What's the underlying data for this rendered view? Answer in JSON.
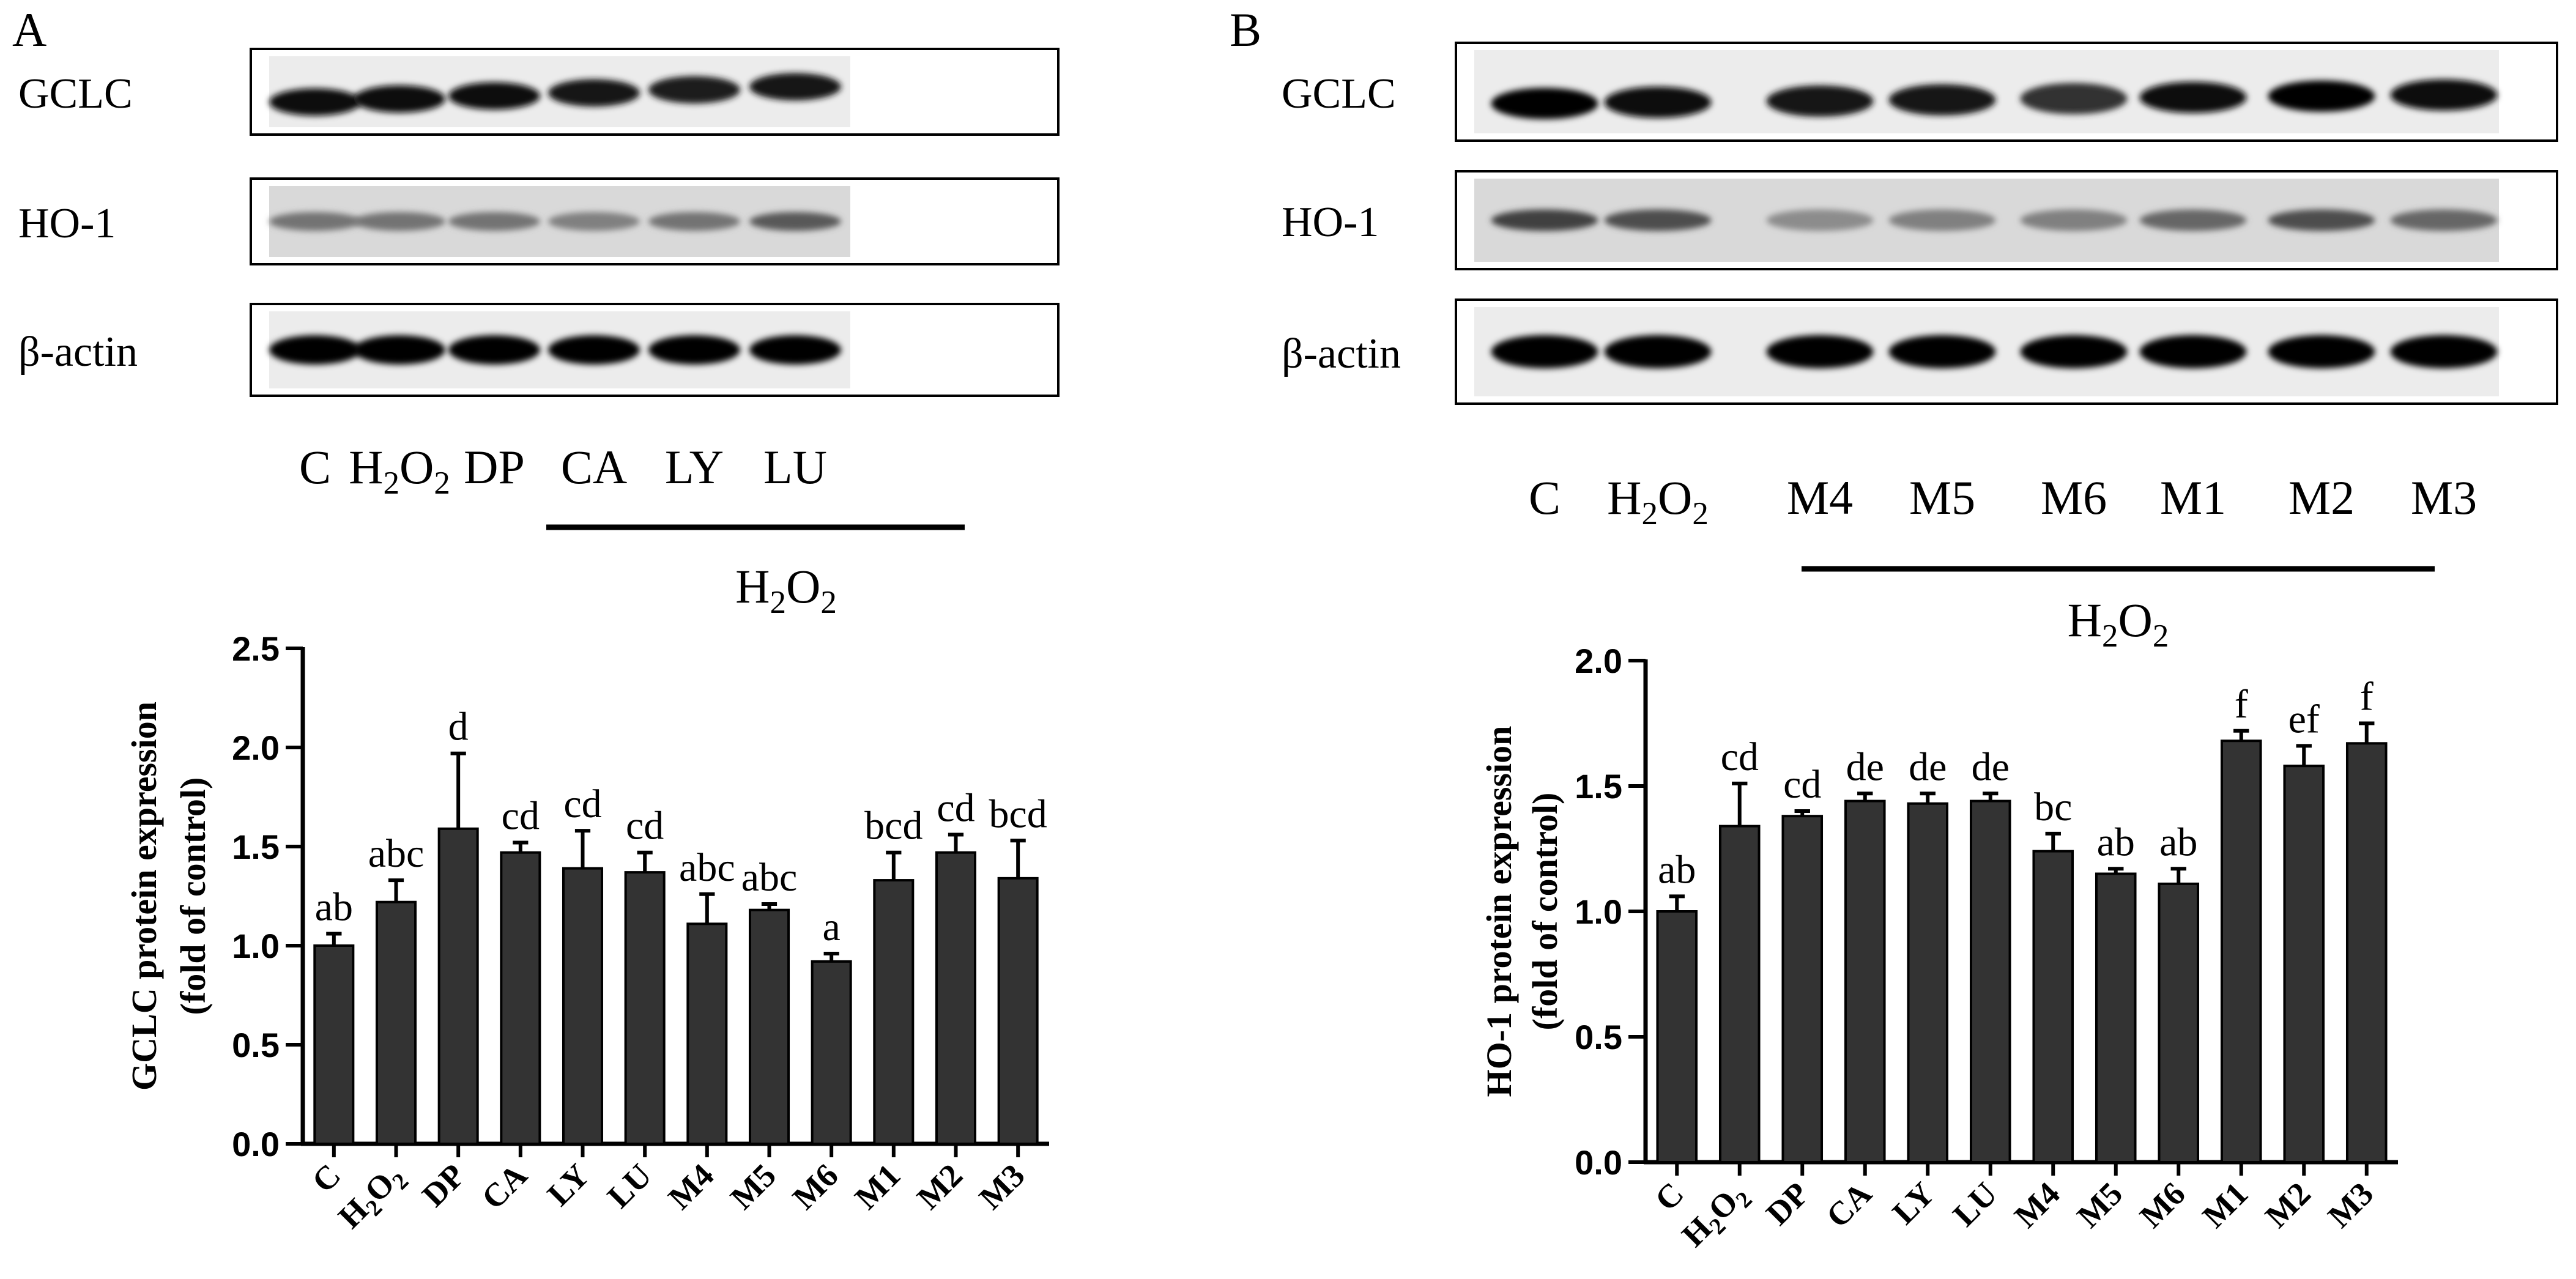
{
  "panels": [
    {
      "panel_label": "A",
      "blots": {
        "rows": [
          {
            "label": "GCLC",
            "bands": [
              0.95,
              0.95,
              0.95,
              0.92,
              0.88,
              0.92
            ],
            "mode": "tilt"
          },
          {
            "label": "HO-1",
            "bands": [
              0.55,
              0.55,
              0.55,
              0.5,
              0.55,
              0.65
            ],
            "mode": "faint"
          },
          {
            "label": "β-actin",
            "bands": [
              1.0,
              1.0,
              1.0,
              1.0,
              1.0,
              1.0
            ],
            "mode": "solid"
          }
        ],
        "lanes": [
          {
            "main": "C"
          },
          {
            "main": "H",
            "sub1": "2",
            "mid": "O",
            "sub2": "2"
          },
          {
            "main": "DP"
          },
          {
            "main": "CA"
          },
          {
            "main": "LY"
          },
          {
            "main": "LU"
          }
        ],
        "treatment": {
          "main": "H",
          "sub1": "2",
          "mid": "O",
          "sub2": "2"
        }
      }
    },
    {
      "panel_label": "B",
      "blots": {
        "rows": [
          {
            "label": "GCLC",
            "bands": [
              1.0,
              0.95,
              0.9,
              0.9,
              0.8,
              0.95,
              1.0,
              0.95
            ],
            "mode": "tilt"
          },
          {
            "label": "HO-1",
            "bands": [
              0.75,
              0.7,
              0.45,
              0.5,
              0.5,
              0.6,
              0.7,
              0.6
            ],
            "mode": "faint"
          },
          {
            "label": "β-actin",
            "bands": [
              1.0,
              1.0,
              1.0,
              1.0,
              1.0,
              1.0,
              1.0,
              1.0
            ],
            "mode": "solid"
          }
        ],
        "lanes": [
          {
            "main": "C"
          },
          {
            "main": "H",
            "sub1": "2",
            "mid": "O",
            "sub2": "2"
          },
          {
            "main": "M4"
          },
          {
            "main": "M5"
          },
          {
            "main": "M6"
          },
          {
            "main": "M1"
          },
          {
            "main": "M2"
          },
          {
            "main": "M3"
          }
        ],
        "treatment": {
          "main": "H",
          "sub1": "2",
          "mid": "O",
          "sub2": "2"
        }
      }
    }
  ],
  "chart_data": [
    {
      "type": "bar",
      "panel": "A",
      "categories": [
        "C",
        "H2O2",
        "DP",
        "CA",
        "LY",
        "LU",
        "M4",
        "M5",
        "M6",
        "M1",
        "M2",
        "M3"
      ],
      "values": [
        1.0,
        1.22,
        1.59,
        1.47,
        1.39,
        1.37,
        1.11,
        1.18,
        0.92,
        1.33,
        1.47,
        1.34
      ],
      "errors": [
        0.06,
        0.11,
        0.38,
        0.05,
        0.19,
        0.1,
        0.15,
        0.03,
        0.04,
        0.14,
        0.09,
        0.19
      ],
      "annotations": [
        "ab",
        "abc",
        "d",
        "cd",
        "cd",
        "cd",
        "abc",
        "abc",
        "a",
        "bcd",
        "cd",
        "bcd"
      ],
      "ylabel": "GCLC protein expression",
      "ylabel2": "(fold of control)",
      "ylim": [
        0.0,
        2.5
      ],
      "yticks": [
        "0.0",
        "0.5",
        "1.0",
        "1.5",
        "2.0",
        "2.5"
      ],
      "bar_color": "#333333"
    },
    {
      "type": "bar",
      "panel": "B",
      "categories": [
        "C",
        "H2O2",
        "DP",
        "CA",
        "LY",
        "LU",
        "M4",
        "M5",
        "M6",
        "M1",
        "M2",
        "M3"
      ],
      "values": [
        1.0,
        1.34,
        1.38,
        1.44,
        1.43,
        1.44,
        1.24,
        1.15,
        1.11,
        1.68,
        1.58,
        1.67
      ],
      "errors": [
        0.06,
        0.17,
        0.02,
        0.03,
        0.04,
        0.03,
        0.07,
        0.02,
        0.06,
        0.04,
        0.08,
        0.08
      ],
      "annotations": [
        "ab",
        "cd",
        "cd",
        "de",
        "de",
        "de",
        "bc",
        "ab",
        "ab",
        "f",
        "ef",
        "f"
      ],
      "ylabel": "HO-1 protein expression",
      "ylabel2": "(fold of control)",
      "ylim": [
        0.0,
        2.0
      ],
      "yticks": [
        "0.0",
        "0.5",
        "1.0",
        "1.5",
        "2.0"
      ],
      "bar_color": "#333333"
    }
  ]
}
